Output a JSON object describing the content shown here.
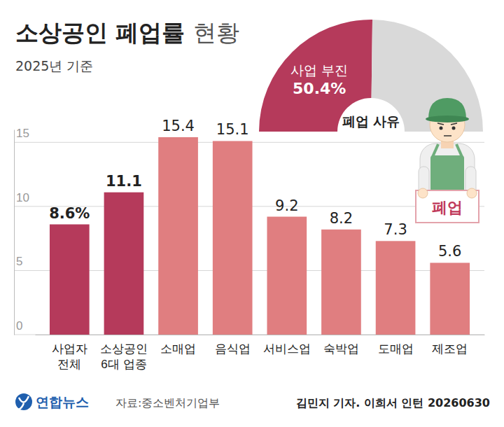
{
  "chart_data": [
    {
      "type": "bar",
      "title": "소상공인 폐업률 현황",
      "subtitle": "2025년 기준",
      "categories": [
        "사업자 전체",
        "소상공인 6대 업종",
        "소매업",
        "음식업",
        "서비스업",
        "숙박업",
        "도매업",
        "제조업"
      ],
      "values": [
        8.6,
        11.1,
        15.4,
        15.1,
        9.2,
        8.2,
        7.3,
        5.6
      ],
      "value_labels": [
        "8.6%",
        "11.1",
        "15.4",
        "15.1",
        "9.2",
        "8.2",
        "7.3",
        "5.6"
      ],
      "colors": [
        "#b53a5b",
        "#b53a5b",
        "#e07e80",
        "#e07e80",
        "#e07e80",
        "#e07e80",
        "#e07e80",
        "#e07e80"
      ],
      "ylim": [
        0,
        16
      ],
      "yticks": [
        0,
        5,
        10,
        15
      ],
      "grid": true,
      "data_labels": true
    },
    {
      "type": "half_donut",
      "title": "폐업 사유",
      "categories": [
        "사업 부진",
        null
      ],
      "values": [
        50.4,
        49.6
      ],
      "value_labels": [
        "50.4%",
        null
      ],
      "colors": [
        "#b53a5b",
        "#d9d9d9"
      ],
      "data_labels": true
    }
  ],
  "illustration": {
    "sign": "폐업"
  },
  "footer": {
    "logo": "연합뉴스",
    "source": "자료:중소벤처기업부",
    "credit": "김민지 기자. 이희서 인턴 20260630"
  }
}
